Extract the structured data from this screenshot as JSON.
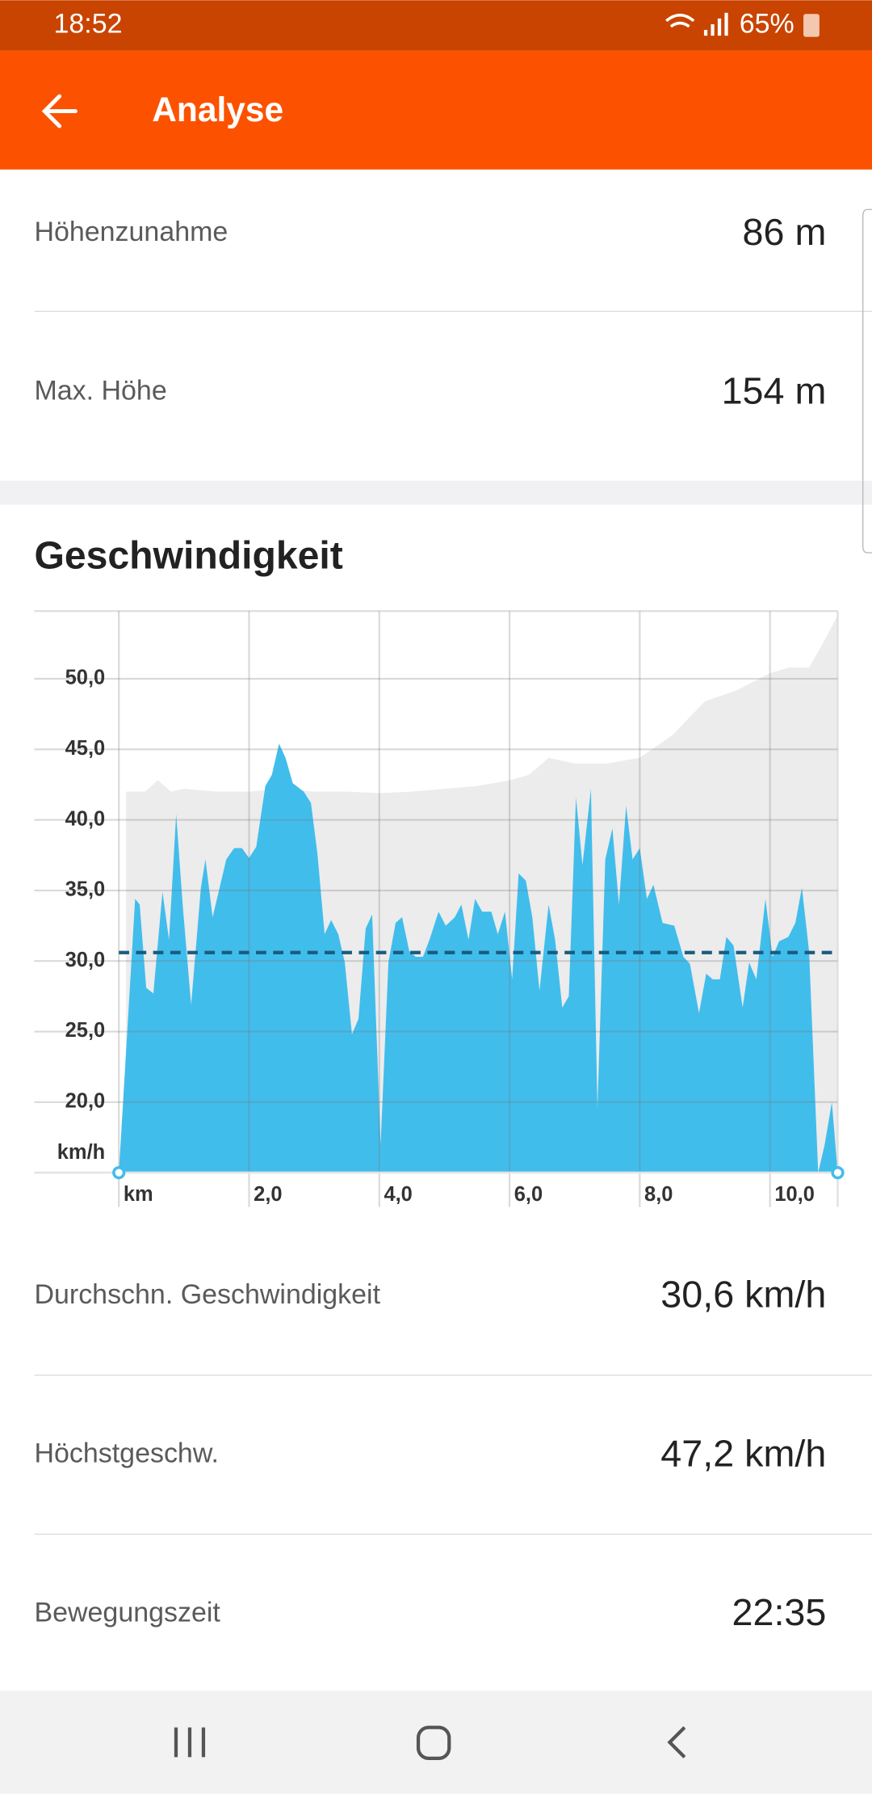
{
  "status_bar": {
    "time": "18:52",
    "battery": "65%"
  },
  "app_bar": {
    "title": "Analyse"
  },
  "elevation_stats": [
    {
      "label": "Höhenzunahme",
      "value": "86 m"
    },
    {
      "label": "Max. Höhe",
      "value": "154 m"
    }
  ],
  "chart_data": {
    "type": "area",
    "title": "Geschwindigkeit",
    "y_axis_label": "km/h",
    "xlim": [
      0,
      11.04
    ],
    "ylim": [
      15,
      54.8
    ],
    "xticks": [
      {
        "value": 0,
        "label": "km"
      },
      {
        "value": 2,
        "label": "2,0"
      },
      {
        "value": 4,
        "label": "4,0"
      },
      {
        "value": 6,
        "label": "6,0"
      },
      {
        "value": 8,
        "label": "8,0"
      },
      {
        "value": 10,
        "label": "10,0"
      }
    ],
    "yticks": [
      {
        "value": 20,
        "label": "20,0"
      },
      {
        "value": 25,
        "label": "25,0"
      },
      {
        "value": 30,
        "label": "30,0"
      },
      {
        "value": 35,
        "label": "35,0"
      },
      {
        "value": 40,
        "label": "40,0"
      },
      {
        "value": 45,
        "label": "45,0"
      },
      {
        "value": 50,
        "label": "50,0"
      }
    ],
    "grid": true,
    "average_line": 30.6,
    "average_line_color": "#1a5b80",
    "series": [
      {
        "color": "#ececec",
        "x": [
          0.11,
          0.4,
          0.6,
          0.8,
          1.0,
          1.5,
          2.0,
          2.5,
          3.0,
          3.5,
          4.0,
          4.5,
          5.0,
          5.5,
          6.0,
          6.3,
          6.6,
          7.0,
          7.5,
          8.0,
          8.5,
          9.0,
          9.5,
          10.0,
          10.3,
          10.6,
          10.8,
          11.04
        ],
        "values": [
          42.0,
          42.0,
          42.8,
          42.0,
          42.2,
          42.0,
          42.0,
          42.2,
          42.0,
          42.0,
          41.9,
          42.0,
          42.2,
          42.4,
          42.8,
          43.2,
          44.4,
          44.0,
          44.0,
          44.4,
          46.0,
          48.4,
          49.2,
          50.4,
          50.8,
          50.8,
          52.4,
          54.5
        ]
      },
      {
        "color": "#41bdec",
        "x": [
          0,
          0.25,
          0.32,
          0.42,
          0.53,
          0.67,
          0.77,
          0.88,
          0.98,
          1.11,
          1.26,
          1.33,
          1.44,
          1.65,
          1.77,
          1.89,
          2.0,
          2.11,
          2.25,
          2.35,
          2.46,
          2.56,
          2.67,
          2.84,
          2.95,
          3.05,
          3.16,
          3.26,
          3.37,
          3.47,
          3.58,
          3.68,
          3.79,
          3.89,
          4.02,
          4.14,
          4.25,
          4.35,
          4.46,
          4.56,
          4.67,
          4.77,
          4.91,
          5.02,
          5.16,
          5.26,
          5.37,
          5.47,
          5.58,
          5.72,
          5.82,
          5.93,
          6.04,
          6.14,
          6.25,
          6.35,
          6.46,
          6.6,
          6.7,
          6.81,
          6.91,
          7.02,
          7.12,
          7.25,
          7.35,
          7.47,
          7.58,
          7.68,
          7.79,
          7.89,
          8.0,
          8.11,
          8.21,
          8.35,
          8.53,
          8.67,
          8.77,
          8.91,
          9.02,
          9.12,
          9.23,
          9.33,
          9.44,
          9.58,
          9.68,
          9.79,
          9.93,
          10.04,
          10.14,
          10.28,
          10.39,
          10.49,
          10.6,
          10.74,
          10.84,
          10.95,
          11.04
        ],
        "values": [
          15,
          34.4,
          34.0,
          28.1,
          27.7,
          34.9,
          31.5,
          40.4,
          34.0,
          26.9,
          35.2,
          37.2,
          33.1,
          37.2,
          38.0,
          38.0,
          37.3,
          38.1,
          42.4,
          43.2,
          45.4,
          44.4,
          42.6,
          42.0,
          41.2,
          37.6,
          31.9,
          32.9,
          31.9,
          29.9,
          24.8,
          25.9,
          32.3,
          33.3,
          17.0,
          29.9,
          32.7,
          33.1,
          30.7,
          30.3,
          30.3,
          31.5,
          33.5,
          32.5,
          33.1,
          34.0,
          31.5,
          34.4,
          33.5,
          33.5,
          31.9,
          33.5,
          28.7,
          36.2,
          35.7,
          33.1,
          27.9,
          34.0,
          31.5,
          26.7,
          27.5,
          41.6,
          36.8,
          42.2,
          19.6,
          37.2,
          39.4,
          34.0,
          41.0,
          37.2,
          38.0,
          34.4,
          35.4,
          32.7,
          32.5,
          30.3,
          29.8,
          26.3,
          29.1,
          28.7,
          28.7,
          31.7,
          31.1,
          26.7,
          29.9,
          28.7,
          34.4,
          30.3,
          31.4,
          31.7,
          32.7,
          35.2,
          30.7,
          15.0,
          17.0,
          20.0,
          15.0
        ]
      }
    ]
  },
  "speed_stats": [
    {
      "label": "Durchschn. Geschwindigkeit",
      "value": "30,6 km/h"
    },
    {
      "label": "Höchstgeschw.",
      "value": "47,2 km/h"
    },
    {
      "label": "Bewegungszeit",
      "value": "22:35"
    }
  ]
}
